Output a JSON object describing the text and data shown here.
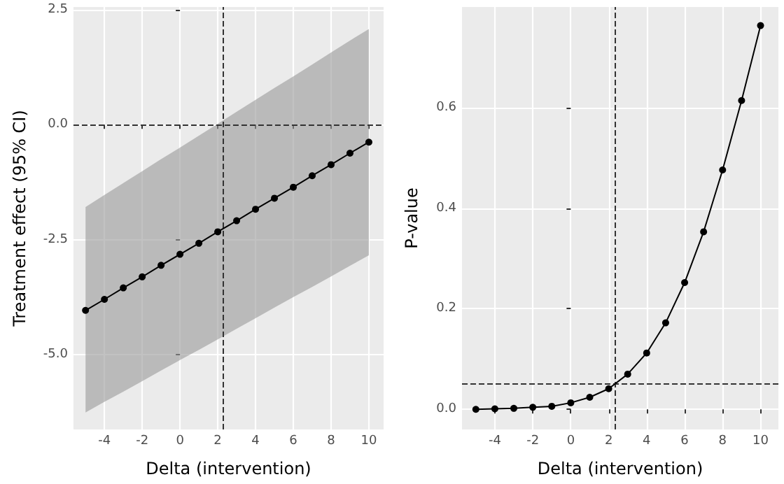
{
  "chart_data": [
    {
      "type": "line",
      "xlabel": "Delta (intervention)",
      "ylabel": "Treatment effect (95% CI)",
      "x": [
        -5,
        -4,
        -3,
        -2,
        -1,
        0,
        1,
        2,
        3,
        4,
        5,
        6,
        7,
        8,
        9,
        10
      ],
      "series": [
        {
          "color": "#000000",
          "values": [
            -4.04,
            -3.8,
            -3.55,
            -3.31,
            -3.06,
            -2.82,
            -2.58,
            -2.33,
            -2.09,
            -1.84,
            -1.6,
            -1.36,
            -1.11,
            -0.87,
            -0.62,
            -0.38
          ],
          "lower": [
            -6.26,
            -6.03,
            -5.81,
            -5.58,
            -5.35,
            -5.12,
            -4.9,
            -4.67,
            -4.44,
            -4.21,
            -3.98,
            -3.75,
            -3.53,
            -3.3,
            -3.07,
            -2.84
          ],
          "upper": [
            -1.79,
            -1.53,
            -1.27,
            -1.01,
            -0.75,
            -0.5,
            -0.24,
            0.02,
            0.28,
            0.54,
            0.8,
            1.05,
            1.31,
            1.57,
            1.83,
            2.08
          ]
        }
      ],
      "xlim": [
        -5.64,
        10.78
      ],
      "ylim": [
        -6.63,
        2.56
      ],
      "xticks": [
        -4,
        -2,
        0,
        2,
        4,
        6,
        8,
        10
      ],
      "yticks": [
        {
          "value": -5,
          "label": "-5.0"
        },
        {
          "value": -2.5,
          "label": "-2.5"
        },
        {
          "value": 0,
          "label": "0.0"
        },
        {
          "value": 2.5,
          "label": "2.5"
        }
      ],
      "ref_lines": [
        {
          "axis": "x",
          "value": 2.3,
          "line_style": "dashed"
        },
        {
          "axis": "y",
          "value": 0,
          "line_style": "dashed"
        }
      ],
      "grid": true,
      "marker": "circle"
    },
    {
      "type": "line",
      "xlabel": "Delta (intervention)",
      "ylabel": "P-value",
      "x": [
        -5,
        -4,
        -3,
        -2,
        -1,
        0,
        1,
        2,
        3,
        4,
        5,
        6,
        7,
        8,
        9,
        10
      ],
      "series": [
        {
          "color": "#000000",
          "values": [
            0,
            0.001,
            0.002,
            0.004,
            0.006,
            0.013,
            0.024,
            0.041,
            0.07,
            0.112,
            0.172,
            0.252,
            0.353,
            0.476,
            0.614,
            0.763
          ]
        }
      ],
      "xlim": [
        -5.73,
        10.94
      ],
      "ylim": [
        -0.04,
        0.8
      ],
      "xticks": [
        -4,
        -2,
        0,
        2,
        4,
        6,
        8,
        10
      ],
      "yticks": [
        {
          "value": 0,
          "label": "0.0"
        },
        {
          "value": 0.2,
          "label": "0.2"
        },
        {
          "value": 0.4,
          "label": "0.4"
        },
        {
          "value": 0.6,
          "label": "0.6"
        }
      ],
      "ref_lines": [
        {
          "axis": "x",
          "value": 2.3,
          "line_style": "dashed"
        },
        {
          "axis": "y",
          "value": 0.05,
          "line_style": "dashed"
        }
      ],
      "grid": true,
      "marker": "circle"
    }
  ]
}
